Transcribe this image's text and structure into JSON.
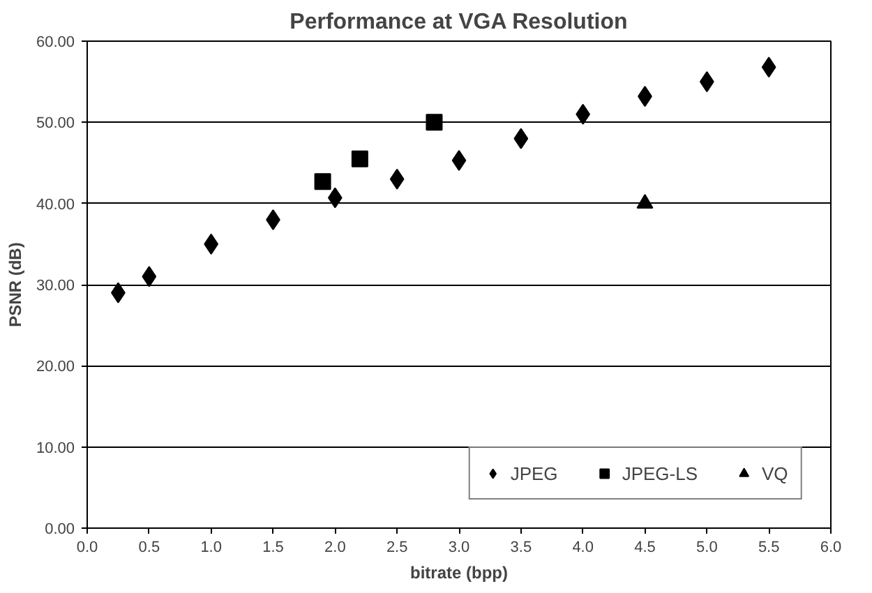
{
  "chart_data": {
    "type": "scatter",
    "title": "Performance at VGA Resolution",
    "xlabel": "bitrate (bpp)",
    "ylabel": "PSNR (dB)",
    "xlim": [
      0,
      6
    ],
    "ylim": [
      0,
      60
    ],
    "xticks": [
      {
        "value": 0,
        "label": "0.0"
      },
      {
        "value": 0.5,
        "label": "0.5"
      },
      {
        "value": 1,
        "label": "1.0"
      },
      {
        "value": 1.5,
        "label": "1.5"
      },
      {
        "value": 2,
        "label": "2.0"
      },
      {
        "value": 2.5,
        "label": "2.5"
      },
      {
        "value": 3,
        "label": "3.0"
      },
      {
        "value": 3.5,
        "label": "3.5"
      },
      {
        "value": 4,
        "label": "4.0"
      },
      {
        "value": 4.5,
        "label": "4.5"
      },
      {
        "value": 5,
        "label": "5.0"
      },
      {
        "value": 5.5,
        "label": "5.5"
      },
      {
        "value": 6,
        "label": "6.0"
      }
    ],
    "yticks": [
      {
        "value": 0,
        "label": "0.00"
      },
      {
        "value": 10,
        "label": "10.00"
      },
      {
        "value": 20,
        "label": "20.00"
      },
      {
        "value": 30,
        "label": "30.00"
      },
      {
        "value": 40,
        "label": "40.00"
      },
      {
        "value": 50,
        "label": "50.00"
      },
      {
        "value": 60,
        "label": "60.00"
      }
    ],
    "grid": "y",
    "legend": "bottom right",
    "series": [
      {
        "name": "JPEG",
        "color": "#000000",
        "marker": "diamond",
        "x": [
          0.25,
          0.5,
          1.0,
          1.5,
          2.0,
          2.5,
          3.0,
          3.5,
          4.0,
          4.5,
          5.0,
          5.5
        ],
        "values": [
          29,
          31,
          35,
          38,
          40.7,
          43,
          45.3,
          48,
          51,
          53.2,
          55,
          56.8
        ]
      },
      {
        "name": "JPEG-LS",
        "color": "#000000",
        "marker": "square",
        "x": [
          1.9,
          2.2,
          2.8
        ],
        "values": [
          42.7,
          45.5,
          50
        ]
      },
      {
        "name": "VQ",
        "color": "#000000",
        "marker": "triangle",
        "x": [
          4.5
        ],
        "values": [
          40
        ]
      }
    ]
  }
}
